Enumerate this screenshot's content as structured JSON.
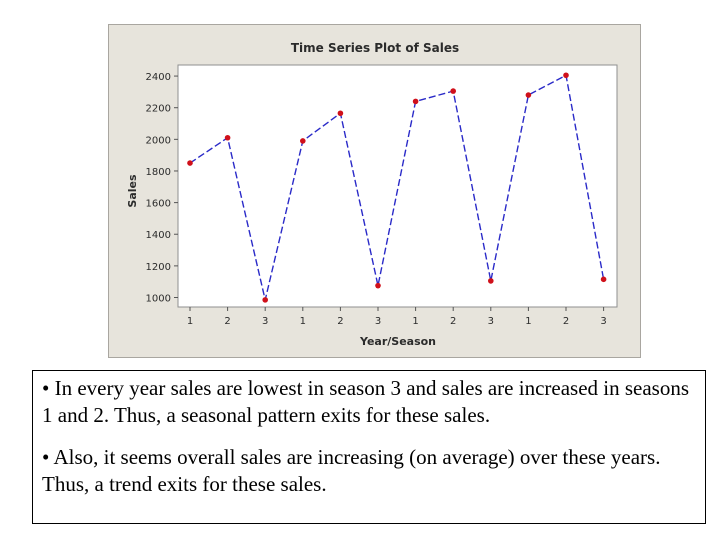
{
  "chart_data": {
    "type": "line",
    "title": "Time Series Plot of Sales",
    "xlabel": "Year/Season",
    "ylabel": "Sales",
    "categories": [
      "1",
      "2",
      "3",
      "1",
      "2",
      "3",
      "1",
      "2",
      "3",
      "1",
      "2",
      "3"
    ],
    "series": [
      {
        "name": "Sales",
        "values": [
          1850,
          2010,
          985,
          1990,
          2165,
          1075,
          2240,
          2305,
          1105,
          2280,
          2405,
          1115
        ]
      }
    ],
    "yticks": [
      1000,
      1200,
      1400,
      1600,
      1800,
      2000,
      2200,
      2400
    ],
    "ylim": [
      940,
      2470
    ],
    "grid": false,
    "line_color": "#2a2ac8",
    "marker_color": "#d0101a"
  },
  "notes": {
    "bullet1": "• In every year sales are lowest in season 3 and sales are increased in seasons 1 and 2. Thus, a seasonal pattern exits for these sales.",
    "bullet2": "• Also, it seems overall sales are increasing (on average) over these years. Thus, a trend exits for these sales."
  }
}
